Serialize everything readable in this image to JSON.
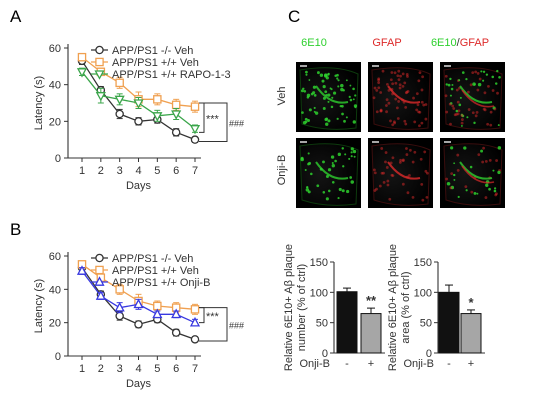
{
  "panels": {
    "a": "A",
    "b": "B",
    "c": "C"
  },
  "colors": {
    "black": "#333333",
    "orange": "#f0a050",
    "green": "#3aa54a",
    "blue": "#3838e0",
    "red": "#dd2a2a",
    "microGreen": "#2ed02e",
    "bar_dark": "#111111",
    "bar_gray": "#a6a6a6"
  },
  "chart_data": [
    {
      "type": "line",
      "panel": "A",
      "x": [
        1,
        2,
        3,
        4,
        5,
        6,
        7
      ],
      "xlabel": "Days",
      "ylabel": "Latency (s)",
      "ylim": [
        0,
        60
      ],
      "yticks": [
        0,
        20,
        40,
        60
      ],
      "legend": "top-right",
      "series": [
        {
          "name": "APP/PS1 -/- Veh",
          "marker": "circle",
          "color": "#333333",
          "values": [
            53,
            37,
            24,
            20,
            21,
            14,
            10
          ],
          "err": [
            2,
            2,
            2.5,
            2,
            2,
            2,
            1.5
          ]
        },
        {
          "name": "APP/PS1 +/+ Veh",
          "marker": "square",
          "color": "#f0a050",
          "values": [
            55,
            47,
            41,
            32,
            32,
            29,
            28
          ],
          "err": [
            2,
            2,
            3,
            4,
            3,
            3,
            3
          ]
        },
        {
          "name": "APP/PS1 +/+ RAPO-1-3",
          "marker": "triangle-down",
          "color": "#3aa54a",
          "values": [
            47,
            34,
            32,
            30,
            23,
            24,
            16
          ],
          "err": [
            2,
            4,
            3,
            3,
            3,
            3,
            2
          ]
        }
      ],
      "annotations": [
        "***",
        "###"
      ]
    },
    {
      "type": "line",
      "panel": "B",
      "x": [
        1,
        2,
        3,
        4,
        5,
        6,
        7
      ],
      "xlabel": "Days",
      "ylabel": "Latency (s)",
      "ylim": [
        0,
        60
      ],
      "yticks": [
        0,
        20,
        40,
        60
      ],
      "legend": "top-right",
      "series": [
        {
          "name": "APP/PS1 -/- Veh",
          "marker": "circle",
          "color": "#333333",
          "values": [
            53,
            37,
            24,
            19,
            22,
            14,
            10
          ],
          "err": [
            2,
            2,
            2.5,
            2,
            2,
            2,
            1.5
          ]
        },
        {
          "name": "APP/PS1 +/+ Veh",
          "marker": "square",
          "color": "#f0a050",
          "values": [
            55,
            47,
            40,
            33,
            30,
            29,
            28
          ],
          "err": [
            2,
            2,
            3,
            4,
            3,
            3,
            3
          ]
        },
        {
          "name": "APP/PS1 +/+ Onji-B",
          "marker": "triangle-up",
          "color": "#3838e0",
          "values": [
            51,
            36,
            29,
            31,
            25,
            25,
            20
          ],
          "err": [
            2,
            2,
            3,
            3,
            2,
            2,
            2
          ]
        }
      ],
      "annotations": [
        "***",
        "###"
      ]
    },
    {
      "type": "bar",
      "panel": "C-left",
      "categories": [
        "-",
        "+"
      ],
      "values": [
        101,
        65
      ],
      "err": [
        6,
        9
      ],
      "ylabel": "Relative 6E10+ Aβ plaque number (% of ctrl)",
      "xlabel": "Onji-B",
      "ylim": [
        0,
        150
      ],
      "yticks": [
        0,
        50,
        100,
        150
      ],
      "significance": "**"
    },
    {
      "type": "bar",
      "panel": "C-right",
      "categories": [
        "-",
        "+"
      ],
      "values": [
        100,
        65
      ],
      "err": [
        12,
        6
      ],
      "ylabel": "Relative 6E10+ Aβ plaque area (% of ctrl)",
      "xlabel": "Onji-B",
      "ylim": [
        0,
        150
      ],
      "yticks": [
        0,
        50,
        100,
        150
      ],
      "significance": "*"
    }
  ],
  "micrographs": {
    "columns": [
      "6E10",
      "GFAP",
      "6E10",
      "/",
      "GFAP"
    ],
    "rows": [
      "Veh",
      "Onji-B"
    ]
  }
}
